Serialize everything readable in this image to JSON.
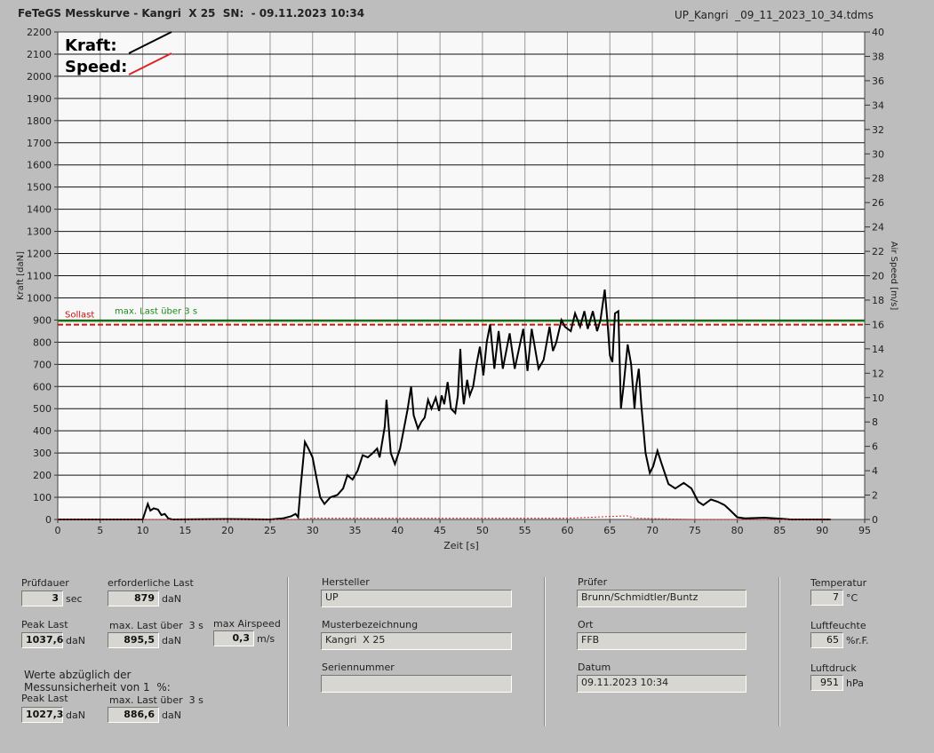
{
  "header": {
    "title": "FeTeGS Messkurve - Kangri  X 25  SN:  - 09.11.2023 10:34",
    "file": "UP_Kangri  _09_11_2023_10_34.tdms"
  },
  "chart_data": {
    "type": "line",
    "xlabel": "Zeit [s]",
    "ylabel": "Kraft [daN]",
    "y2label": "Air Speed [m/s]",
    "xlim": [
      0,
      95
    ],
    "xticks": [
      0,
      5,
      10,
      15,
      20,
      25,
      30,
      35,
      40,
      45,
      50,
      55,
      60,
      65,
      70,
      75,
      80,
      85,
      90,
      95
    ],
    "ylim": [
      0,
      2200
    ],
    "yticks": [
      0,
      100,
      200,
      300,
      400,
      500,
      600,
      700,
      800,
      900,
      1000,
      1100,
      1200,
      1300,
      1400,
      1500,
      1600,
      1700,
      1800,
      1900,
      2000,
      2100,
      2200
    ],
    "y2lim": [
      0,
      40
    ],
    "y2ticks": [
      0,
      2,
      4,
      6,
      8,
      10,
      12,
      14,
      16,
      18,
      20,
      22,
      24,
      26,
      28,
      30,
      32,
      34,
      36,
      38,
      40
    ],
    "grid": true,
    "legend": "top-left",
    "series": [
      {
        "name": "Kraft:",
        "color": "#000000",
        "x": [
          0,
          5,
          10,
          10.6,
          10.9,
          11.3,
          11.8,
          12.2,
          12.6,
          13,
          13.5,
          20,
          25,
          26.5,
          27.5,
          28,
          28.3,
          28.6,
          29.1,
          29.5,
          30,
          30.5,
          30.9,
          31.4,
          32.1,
          32.9,
          33.6,
          34.1,
          34.7,
          35.3,
          35.9,
          36.5,
          37.1,
          37.6,
          37.9,
          38.5,
          38.7,
          38.9,
          39.2,
          39.7,
          40.3,
          40.8,
          41.2,
          41.6,
          41.9,
          42.4,
          42.8,
          43.2,
          43.6,
          44,
          44.5,
          44.9,
          45.2,
          45.5,
          45.9,
          46.3,
          46.8,
          47.1,
          47.4,
          47.6,
          47.8,
          48.2,
          48.5,
          48.9,
          49.3,
          49.7,
          50.1,
          50.5,
          50.9,
          51.4,
          51.9,
          52.4,
          53.2,
          53.8,
          54.8,
          55.3,
          55.8,
          56.6,
          57.2,
          57.9,
          58.3,
          58.7,
          59.3,
          59.7,
          60.4,
          60.9,
          61.5,
          62,
          62.4,
          63,
          63.5,
          63.9,
          64.4,
          64.7,
          65,
          65.3,
          65.6,
          66,
          66.3,
          66.6,
          67.1,
          67.5,
          67.9,
          68.1,
          68.4,
          68.7,
          69.2,
          69.7,
          70.1,
          70.6,
          71.1,
          71.9,
          72.7,
          73.7,
          74.6,
          75.4,
          76,
          76.9,
          77.7,
          78.5,
          79.2,
          80,
          80.9,
          83.2,
          85.3,
          86.3,
          91
        ],
        "values": [
          0,
          0,
          0,
          70,
          40,
          50,
          45,
          20,
          25,
          5,
          0,
          2,
          0,
          5,
          15,
          25,
          10,
          150,
          350,
          320,
          280,
          180,
          100,
          70,
          100,
          110,
          140,
          200,
          180,
          220,
          290,
          280,
          300,
          320,
          280,
          420,
          540,
          450,
          300,
          250,
          320,
          420,
          500,
          600,
          470,
          410,
          440,
          460,
          540,
          500,
          550,
          490,
          560,
          520,
          620,
          500,
          480,
          560,
          770,
          600,
          520,
          630,
          560,
          600,
          700,
          780,
          650,
          800,
          880,
          680,
          850,
          680,
          840,
          680,
          860,
          670,
          860,
          680,
          720,
          870,
          760,
          800,
          900,
          870,
          850,
          930,
          870,
          940,
          860,
          940,
          850,
          900,
          1037.6,
          900,
          740,
          710,
          930,
          940,
          500,
          600,
          790,
          700,
          500,
          600,
          680,
          520,
          300,
          210,
          240,
          310,
          250,
          160,
          140,
          165,
          140,
          80,
          65,
          90,
          80,
          65,
          40,
          10,
          5,
          8,
          3,
          0,
          0
        ]
      },
      {
        "name": "Speed:",
        "color": "#dd2222",
        "axis": "y2",
        "x": [
          0,
          28,
          30,
          60,
          67,
          68,
          75,
          91
        ],
        "values": [
          0,
          0,
          0.1,
          0.1,
          0.3,
          0.1,
          0,
          0
        ]
      }
    ],
    "reference_lines": [
      {
        "name": "max. Last über  3 s",
        "value": 895.5,
        "color": "#1a8a1a"
      },
      {
        "name": "Sollast",
        "value": 879,
        "color": "#cc1111",
        "dashed": true
      }
    ]
  },
  "fields": {
    "pruefdauer": {
      "label": "Prüfdauer",
      "value": "3",
      "unit": "sec"
    },
    "erf_last": {
      "label": "erforderliche Last",
      "value": "879",
      "unit": "daN"
    },
    "peak_last": {
      "label": "Peak Last",
      "value": "1037,6",
      "unit": "daN"
    },
    "max_last": {
      "label": "max. Last über  3 s",
      "value": "895,5",
      "unit": "daN"
    },
    "max_airspeed": {
      "label": "max Airspeed",
      "value": "0,3",
      "unit": "m/s"
    },
    "note": [
      "Werte abzüglich der",
      "Messunsicherheit von 1  %:"
    ],
    "peak_last_corr": {
      "label": "Peak Last",
      "value": "1027,3",
      "unit": "daN"
    },
    "max_last_corr": {
      "label": "max. Last über  3 s",
      "value": "886,6",
      "unit": "daN"
    },
    "hersteller": {
      "label": "Hersteller",
      "value": "UP"
    },
    "muster": {
      "label": "Musterbezeichnung",
      "value": "Kangri  X 25"
    },
    "serien": {
      "label": "Seriennummer"
    },
    "pruefer": {
      "label": "Prüfer",
      "value": "Brunn/Schmidtler/Buntz"
    },
    "ort": {
      "label": "Ort",
      "value": "FFB"
    },
    "datum": {
      "label": "Datum",
      "value": "09.11.2023 10:34"
    },
    "temperatur": {
      "label": "Temperatur",
      "value": "7",
      "unit": "°C"
    },
    "luftfeuchte": {
      "label": "Luftfeuchte",
      "value": "65",
      "unit": "%r.F."
    },
    "luftdruck": {
      "label": "Luftdruck",
      "value": "951",
      "unit": "hPa"
    }
  }
}
